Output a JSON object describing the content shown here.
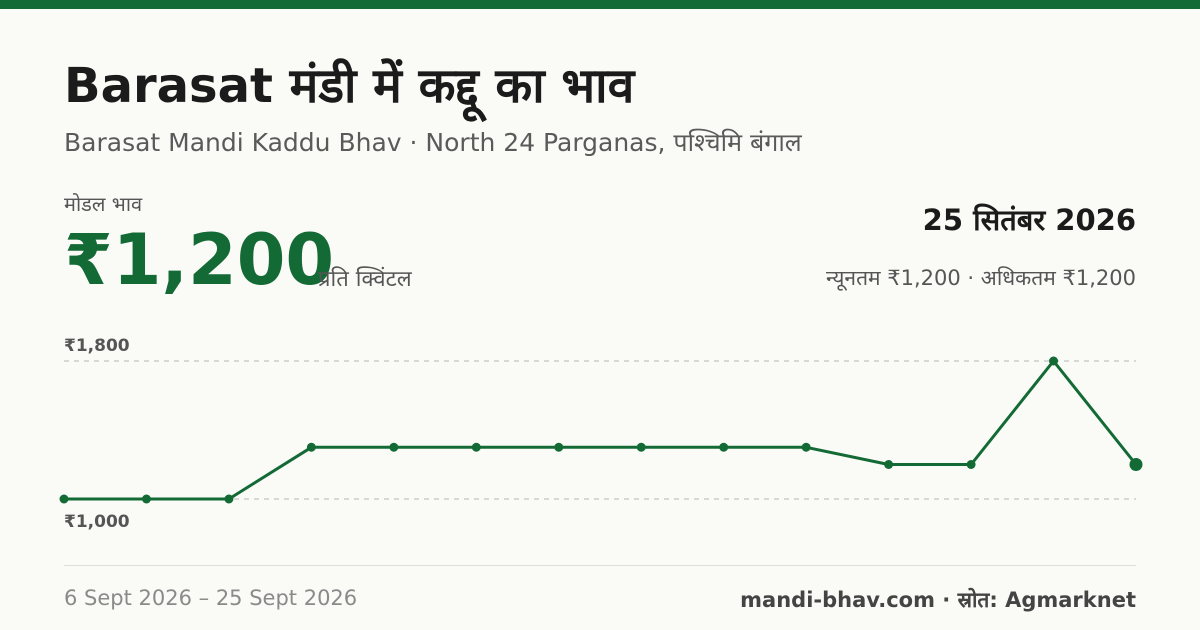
{
  "header": {
    "title": "Barasat मंडी में कद्दू का भाव",
    "subtitle": "Barasat Mandi Kaddu Bhav · North 24 Parganas, पश्चिमि बंगाल"
  },
  "price": {
    "label": "मोडल भाव",
    "value": "₹1,200",
    "unit": "प्रति क्विंटल"
  },
  "summary": {
    "date": "25 सितंबर 2026",
    "range": "न्यूनतम ₹1,200 · अधिकतम ₹1,200"
  },
  "chart_data": {
    "type": "line",
    "ylim": [
      1000,
      1800
    ],
    "yticks": [
      {
        "value": 1800,
        "label": "₹1,800"
      },
      {
        "value": 1000,
        "label": "₹1,000"
      }
    ],
    "grid": true,
    "series": [
      {
        "values": [
          1000,
          1000,
          1000,
          1300,
          1300,
          1300,
          1300,
          1300,
          1300,
          1300,
          1200,
          1200,
          1800,
          1200
        ]
      }
    ],
    "color": "#136a35"
  },
  "footer": {
    "dates": "6 Sept 2026 – 25 Sept 2026",
    "source": "mandi-bhav.com · स्रोत: Agmarknet"
  }
}
